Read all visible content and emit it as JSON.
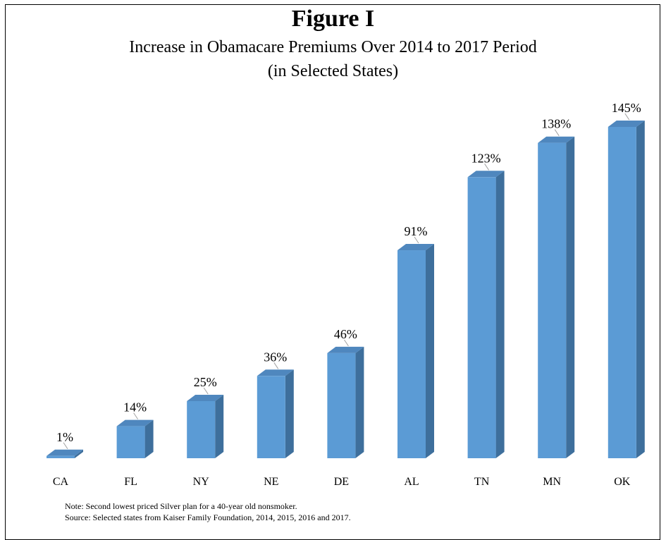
{
  "figure_label": "Figure I",
  "title_line1": "Increase in Obamacare Premiums Over 2014 to 2017 Period",
  "title_line2": "(in Selected States)",
  "note": "Note: Second lowest priced Silver plan for a 40-year old nonsmoker.",
  "source": "Source: Selected states from Kaiser Family Foundation, 2014, 2015, 2016 and 2017.",
  "colors": {
    "bar_front": "#5B9BD5",
    "bar_side": "#3E6F9C",
    "bar_top": "#4F87BE"
  },
  "chart_data": {
    "type": "bar",
    "title": "Increase in Obamacare Premiums Over 2014 to 2017 Period",
    "subtitle": "(in Selected States)",
    "categories": [
      "CA",
      "FL",
      "NY",
      "NE",
      "DE",
      "AL",
      "TN",
      "MN",
      "OK"
    ],
    "values": [
      1,
      14,
      25,
      36,
      46,
      91,
      123,
      138,
      145
    ],
    "data_labels": [
      "1%",
      "14%",
      "25%",
      "36%",
      "46%",
      "91%",
      "123%",
      "138%",
      "145%"
    ],
    "ylim": [
      0,
      145
    ],
    "grid": false,
    "style": "3d-column"
  }
}
